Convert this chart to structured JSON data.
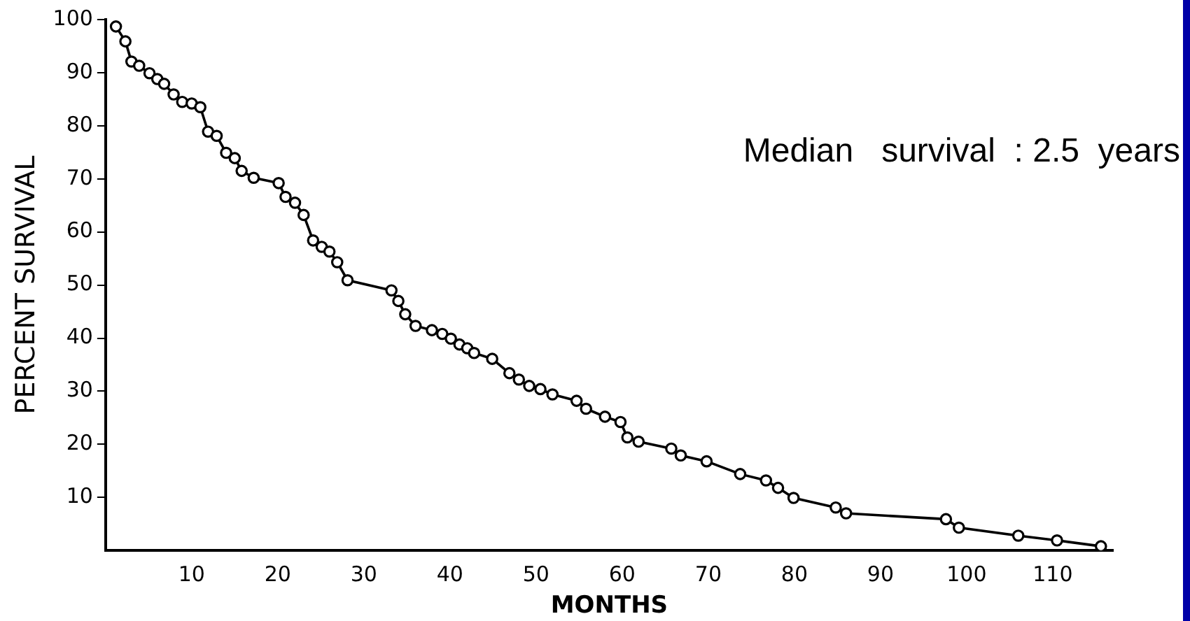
{
  "chart_data": {
    "type": "line",
    "xlabel": "MONTHS",
    "ylabel": "PERCENT SURVIVAL",
    "annotations": [
      "Median   survival  : 2.5  years"
    ],
    "series": [
      {
        "color": "#000000",
        "marker": "circle",
        "line_style": "solid",
        "x": [
          1.2,
          2.3,
          3.0,
          3.9,
          5.1,
          6.0,
          6.8,
          7.9,
          8.9,
          10.0,
          11.0,
          11.9,
          12.9,
          14.0,
          15.0,
          15.8,
          17.2,
          20.1,
          20.9,
          22.0,
          23.0,
          24.1,
          25.1,
          26.0,
          26.9,
          28.1,
          33.2,
          34.0,
          34.8,
          36.0,
          37.9,
          39.1,
          40.1,
          41.1,
          42.0,
          42.8,
          44.9,
          46.9,
          48.0,
          49.2,
          50.5,
          51.9,
          54.7,
          55.8,
          58.0,
          59.8,
          60.6,
          61.9,
          65.7,
          66.8,
          69.8,
          73.7,
          76.7,
          78.1,
          79.9,
          84.8,
          86.0,
          97.6,
          99.1,
          106.0,
          110.5,
          115.6
        ],
        "values": [
          98.7,
          95.9,
          92.1,
          91.3,
          89.9,
          88.8,
          87.9,
          85.9,
          84.5,
          84.2,
          83.5,
          78.9,
          78.1,
          74.9,
          73.9,
          71.5,
          70.2,
          69.2,
          66.6,
          65.5,
          63.2,
          58.4,
          57.2,
          56.3,
          54.3,
          50.9,
          49.0,
          47.0,
          44.5,
          42.3,
          41.5,
          40.8,
          39.9,
          38.8,
          38.1,
          37.2,
          36.1,
          33.4,
          32.2,
          31.0,
          30.4,
          29.4,
          28.2,
          26.7,
          25.2,
          24.2,
          21.3,
          20.5,
          19.2,
          17.9,
          16.8,
          14.4,
          13.2,
          11.8,
          9.9,
          8.1,
          7.0,
          5.9,
          4.3,
          2.8,
          1.9,
          0.8
        ]
      }
    ],
    "xlim": [
      0,
      117
    ],
    "xticks": [
      10,
      20,
      30,
      40,
      50,
      60,
      70,
      80,
      90,
      100,
      110
    ],
    "ylim": [
      0,
      100
    ],
    "yticks": [
      10,
      20,
      30,
      40,
      50,
      60,
      70,
      80,
      90,
      100
    ],
    "grid": false,
    "legend": false
  }
}
